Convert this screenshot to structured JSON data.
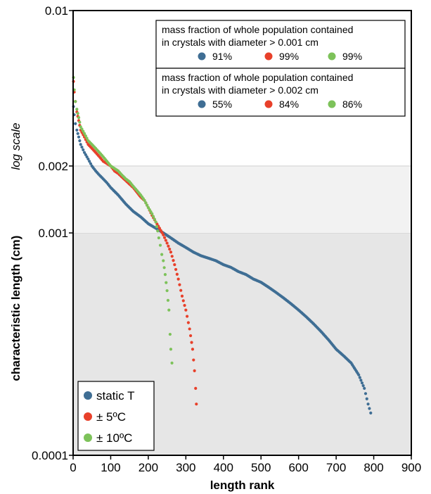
{
  "chart_data": {
    "type": "scatter",
    "title": "",
    "xlabel": "length rank",
    "ylabel": "characteristic length (cm)",
    "ylabel_note": "log scale",
    "xlim": [
      0,
      900
    ],
    "ylim": [
      0.0001,
      0.01
    ],
    "y_scale": "log",
    "x_ticks": [
      0,
      100,
      200,
      300,
      400,
      500,
      600,
      700,
      800,
      900
    ],
    "y_tick_labels": [
      "0.0001",
      "0.001",
      "0.002",
      "0.01"
    ],
    "y_ticks": [
      0.0001,
      0.001,
      0.002,
      0.01
    ],
    "shaded_bands": [
      {
        "from": 0.0001,
        "to": 0.001,
        "color": "#e6e6e6"
      },
      {
        "from": 0.001,
        "to": 0.002,
        "color": "#f2f2f2"
      }
    ],
    "grid": false,
    "legend_position": "bottom-left",
    "series": [
      {
        "name": "static T",
        "color": "#3f6e94",
        "points": [
          [
            1,
            0.0037
          ],
          [
            3,
            0.0034
          ],
          [
            6,
            0.0031
          ],
          [
            10,
            0.0029
          ],
          [
            15,
            0.0027
          ],
          [
            20,
            0.0025
          ],
          [
            30,
            0.0023
          ],
          [
            40,
            0.00215
          ],
          [
            50,
            0.002
          ],
          [
            60,
            0.0019
          ],
          [
            70,
            0.00182
          ],
          [
            80,
            0.00175
          ],
          [
            90,
            0.00168
          ],
          [
            100,
            0.0016
          ],
          [
            120,
            0.00148
          ],
          [
            140,
            0.00135
          ],
          [
            160,
            0.00125
          ],
          [
            180,
            0.00118
          ],
          [
            200,
            0.0011
          ],
          [
            220,
            0.00105
          ],
          [
            240,
            0.001
          ],
          [
            260,
            0.00095
          ],
          [
            280,
            0.0009
          ],
          [
            300,
            0.00086
          ],
          [
            320,
            0.00082
          ],
          [
            340,
            0.00079
          ],
          [
            360,
            0.00077
          ],
          [
            380,
            0.00075
          ],
          [
            400,
            0.00072
          ],
          [
            420,
            0.0007
          ],
          [
            440,
            0.00067
          ],
          [
            460,
            0.00065
          ],
          [
            480,
            0.00062
          ],
          [
            500,
            0.0006
          ],
          [
            520,
            0.00057
          ],
          [
            540,
            0.00054
          ],
          [
            560,
            0.00051
          ],
          [
            580,
            0.00048
          ],
          [
            600,
            0.00045
          ],
          [
            620,
            0.00042
          ],
          [
            640,
            0.00039
          ],
          [
            660,
            0.00036
          ],
          [
            680,
            0.00033
          ],
          [
            700,
            0.0003
          ],
          [
            720,
            0.00028
          ],
          [
            740,
            0.00026
          ],
          [
            760,
            0.00023
          ],
          [
            775,
            0.0002
          ],
          [
            785,
            0.00017
          ],
          [
            792,
            0.000155
          ]
        ]
      },
      {
        "name": "± 5ºC",
        "color": "#e8402a",
        "points": [
          [
            1,
            0.0048
          ],
          [
            3,
            0.0043
          ],
          [
            6,
            0.0039
          ],
          [
            10,
            0.0035
          ],
          [
            15,
            0.0032
          ],
          [
            20,
            0.0029
          ],
          [
            30,
            0.0027
          ],
          [
            40,
            0.0025
          ],
          [
            50,
            0.0024
          ],
          [
            60,
            0.0023
          ],
          [
            70,
            0.0022
          ],
          [
            80,
            0.0021
          ],
          [
            90,
            0.00205
          ],
          [
            100,
            0.002
          ],
          [
            110,
            0.0019
          ],
          [
            120,
            0.00185
          ],
          [
            140,
            0.00172
          ],
          [
            160,
            0.0016
          ],
          [
            180,
            0.00145
          ],
          [
            190,
            0.0014
          ],
          [
            200,
            0.0013
          ],
          [
            210,
            0.0012
          ],
          [
            220,
            0.00112
          ],
          [
            230,
            0.00105
          ],
          [
            240,
            0.00098
          ],
          [
            250,
            0.0009
          ],
          [
            260,
            0.00082
          ],
          [
            270,
            0.00072
          ],
          [
            280,
            0.00062
          ],
          [
            290,
            0.00052
          ],
          [
            300,
            0.00045
          ],
          [
            310,
            0.00037
          ],
          [
            318,
            0.0003
          ],
          [
            323,
            0.00024
          ],
          [
            326,
            0.0002
          ],
          [
            328,
            0.00017
          ]
        ]
      },
      {
        "name": "± 10ºC",
        "color": "#7dc25a",
        "points": [
          [
            1,
            0.005
          ],
          [
            3,
            0.0044
          ],
          [
            6,
            0.0039
          ],
          [
            10,
            0.0036
          ],
          [
            15,
            0.0033
          ],
          [
            20,
            0.003
          ],
          [
            30,
            0.0028
          ],
          [
            40,
            0.0026
          ],
          [
            50,
            0.0025
          ],
          [
            60,
            0.0024
          ],
          [
            70,
            0.0023
          ],
          [
            80,
            0.0022
          ],
          [
            90,
            0.0021
          ],
          [
            100,
            0.002
          ],
          [
            110,
            0.00195
          ],
          [
            120,
            0.0019
          ],
          [
            130,
            0.00182
          ],
          [
            140,
            0.00175
          ],
          [
            150,
            0.0017
          ],
          [
            160,
            0.00162
          ],
          [
            170,
            0.00155
          ],
          [
            180,
            0.00148
          ],
          [
            190,
            0.0014
          ],
          [
            200,
            0.0013
          ],
          [
            210,
            0.00122
          ],
          [
            220,
            0.00112
          ],
          [
            225,
            0.00102
          ],
          [
            228,
            0.00095
          ],
          [
            232,
            0.00088
          ],
          [
            236,
            0.0008
          ],
          [
            240,
            0.00075
          ],
          [
            245,
            0.00065
          ],
          [
            250,
            0.00055
          ],
          [
            255,
            0.00045
          ],
          [
            258,
            0.00035
          ],
          [
            260,
            0.0003
          ],
          [
            263,
            0.00026
          ]
        ]
      }
    ],
    "info_boxes": [
      {
        "line1": "mass fraction of whole population contained",
        "line2": "in crystals with diameter > 0.001 cm",
        "values": [
          "91%",
          "99%",
          "99%"
        ]
      },
      {
        "line1": "mass fraction of whole population contained",
        "line2": "in crystals with diameter > 0.002 cm",
        "values": [
          "55%",
          "84%",
          "86%"
        ]
      }
    ]
  }
}
